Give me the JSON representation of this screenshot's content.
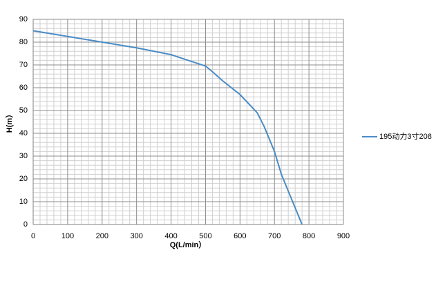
{
  "chart_data": {
    "type": "line",
    "x_label": "Q(L/min）",
    "y_label": "H(m）",
    "x": [
      0,
      100,
      200,
      300,
      400,
      450,
      500,
      520,
      550,
      600,
      650,
      670,
      700,
      720,
      750,
      780
    ],
    "series": [
      {
        "name": "195动力3寸208",
        "color": "#4a8bc6",
        "values": [
          85,
          82.5,
          80,
          77.5,
          74.5,
          72,
          69.5,
          67,
          63,
          57,
          49,
          43,
          32,
          22,
          11,
          0
        ]
      }
    ],
    "xlim": [
      0,
      900
    ],
    "xticks": [
      0,
      100,
      200,
      300,
      400,
      500,
      600,
      700,
      800,
      900
    ],
    "ylim": [
      0,
      90
    ],
    "yticks": [
      0,
      10,
      20,
      30,
      40,
      50,
      60,
      70,
      80,
      90
    ],
    "grid": true,
    "minor_grid": true,
    "legend": "right"
  }
}
